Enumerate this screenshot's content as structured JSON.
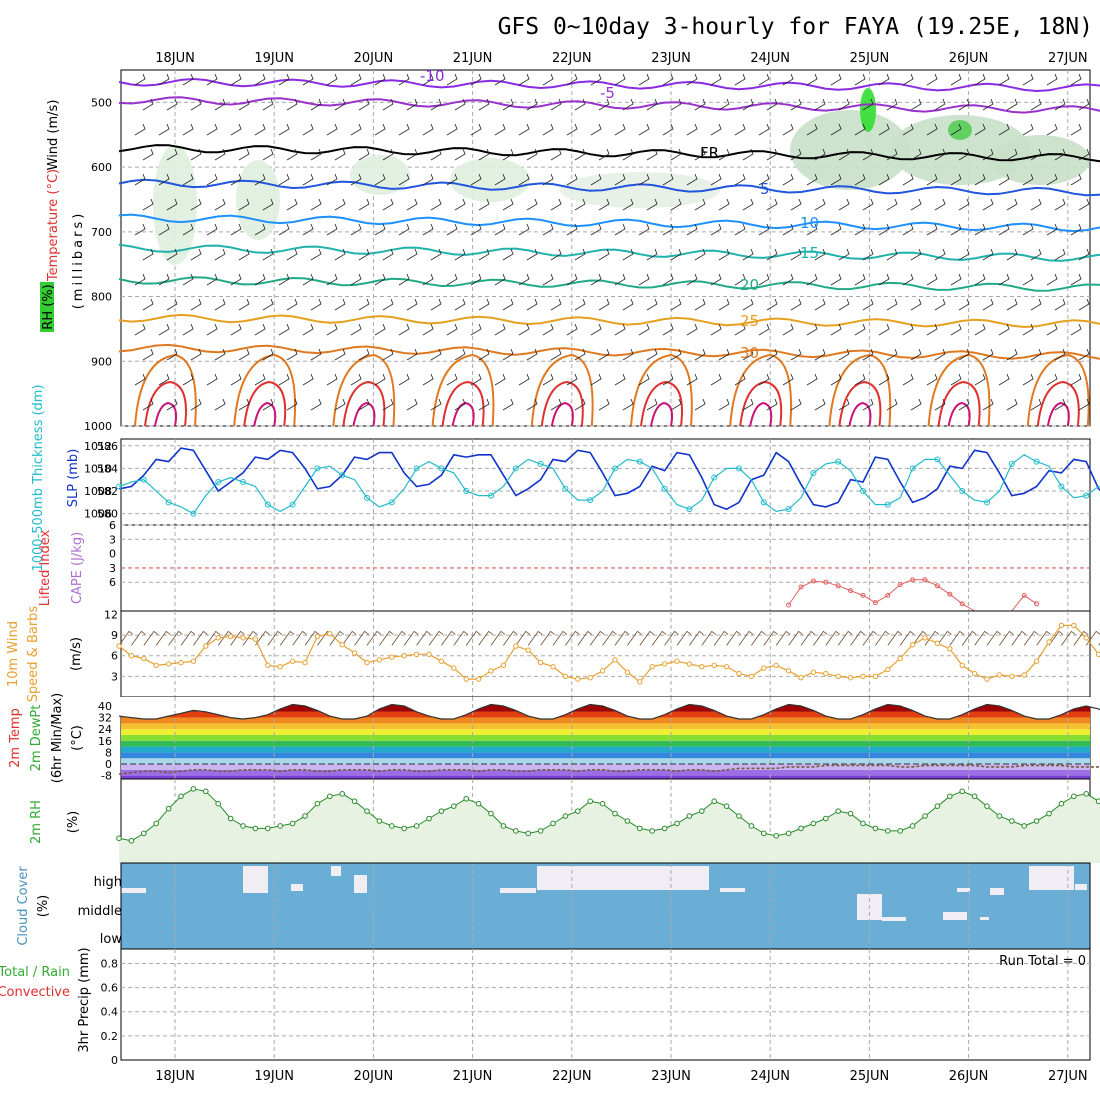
{
  "title": "GFS 0~10day 3-hourly for FAYA (19.25E, 18N)",
  "days": [
    "18JUN",
    "19JUN",
    "20JUN",
    "21JUN",
    "22JUN",
    "23JUN",
    "24JUN",
    "25JUN",
    "26JUN",
    "27JUN"
  ],
  "run_total": "Run Total = 0",
  "colors": {
    "temp_red": "#e03030",
    "dew_green": "#33aa33",
    "cape_purple": "#b070d0",
    "cloud_blue": "#6aaed6",
    "rh_green": "#33cc33",
    "slp_blue": "#1133cc",
    "thick_cyan": "#22bbcc",
    "wind_orange": "#e8a030"
  },
  "chart_data": [
    {
      "type": "line",
      "name": "upper-air",
      "ylabels": [
        "Wind (m/s)",
        "Temperature (°C)",
        "RH (%)",
        "(millibars)"
      ],
      "yticks": [
        500,
        600,
        700,
        800,
        900,
        1000
      ],
      "contours": [
        {
          "label": "-10",
          "color": "#8a2be2",
          "values": [
            -10
          ]
        },
        {
          "label": "-5",
          "color": "#9932cc",
          "values": [
            -5
          ]
        },
        {
          "label": "FR",
          "color": "#000000",
          "values": [
            0
          ]
        },
        {
          "label": "5",
          "color": "#2255dd",
          "values": [
            5
          ]
        },
        {
          "label": "10",
          "color": "#1e90ff",
          "values": [
            10
          ]
        },
        {
          "label": "15",
          "color": "#20b2aa",
          "values": [
            15
          ]
        },
        {
          "label": "20",
          "color": "#22aa88",
          "values": [
            20
          ]
        },
        {
          "label": "25",
          "color": "#e6a020",
          "values": [
            25
          ]
        },
        {
          "label": "30",
          "color": "#e07820",
          "values": [
            30
          ]
        }
      ]
    },
    {
      "type": "line",
      "name": "slp-thickness",
      "ylabels": [
        "1000-500mb Thickness (dm)",
        "SLP (mb)"
      ],
      "left_ticks": [
        580,
        582,
        584,
        586
      ],
      "right_ticks": [
        1006,
        1008,
        1010,
        1012
      ],
      "series": [
        {
          "name": "SLP (mb)",
          "values": [
            1008.2,
            1008.4,
            1009.4,
            1010.8,
            1010.6,
            1011.8,
            1011.6,
            1009.8,
            1008.0,
            1008.8,
            1009.6,
            1011.0,
            1010.8,
            1011.6,
            1011.4,
            1010.0,
            1008.2,
            1008.4,
            1009.4,
            1011.0,
            1010.8,
            1011.4,
            1011.4,
            1009.6,
            1008.4,
            1008.6,
            1009.4,
            1011.2,
            1011.0,
            1011.2,
            1011.2,
            1009.4,
            1007.6,
            1008.2,
            1009.0,
            1010.8,
            1010.6,
            1011.6,
            1011.4,
            1009.6,
            1007.6,
            1007.8,
            1008.4,
            1010.2,
            1009.8,
            1011.4,
            1011.2,
            1009.2,
            1006.8,
            1006.4,
            1007.0,
            1009.0,
            1009.4,
            1011.4,
            1010.6,
            1008.6,
            1006.8,
            1006.6,
            1007.0,
            1009.0,
            1008.8,
            1011.0,
            1010.8,
            1008.8,
            1007.0,
            1007.4,
            1008.2,
            1010.2,
            1010.0,
            1011.6,
            1011.4,
            1009.6,
            1007.6,
            1007.8,
            1008.4,
            1009.8,
            1009.6,
            1010.8,
            1010.6,
            1008.2,
            1007.2
          ]
        },
        {
          "name": "1000-500mb Thickness (dm)",
          "values": [
            582.4,
            582.8,
            583.0,
            582.0,
            581.0,
            580.6,
            580.0,
            581.6,
            582.8,
            583.2,
            582.8,
            582.4,
            580.8,
            580.2,
            580.8,
            582.4,
            584.0,
            584.2,
            583.4,
            583.0,
            581.4,
            580.6,
            581.0,
            582.2,
            584.0,
            584.6,
            584.0,
            583.6,
            582.0,
            581.6,
            581.6,
            582.4,
            584.0,
            584.8,
            584.4,
            584.0,
            582.2,
            581.2,
            581.2,
            582.0,
            584.0,
            584.8,
            584.6,
            584.0,
            582.2,
            580.8,
            580.4,
            581.2,
            583.2,
            584.0,
            584.0,
            583.0,
            581.0,
            580.2,
            580.4,
            581.4,
            583.6,
            584.4,
            584.6,
            583.8,
            582.0,
            580.8,
            580.8,
            581.4,
            584.0,
            584.8,
            584.8,
            583.4,
            582.0,
            581.2,
            581.0,
            582.0,
            584.4,
            585.2,
            584.6,
            584.2,
            582.4,
            581.4,
            581.6,
            582.4,
            582.0
          ]
        }
      ]
    },
    {
      "type": "line",
      "name": "stability",
      "ylabels": [
        "Lifted Index",
        "CAPE (J/kg)"
      ],
      "yticks": [
        "6",
        "3",
        "0",
        "3",
        "6"
      ],
      "series": [
        {
          "name": "CAPE (J/kg)",
          "start_index": 54,
          "values": [
            1,
            4,
            5,
            4.8,
            4.2,
            3.4,
            2.6,
            1.4,
            2.6,
            4.4,
            5.2,
            5.2,
            4.2,
            2.8,
            1.2,
            0,
            0,
            0,
            0,
            2.6,
            1.2
          ]
        }
      ]
    },
    {
      "type": "line",
      "name": "wind10m",
      "ylabels": [
        "10m Wind",
        "Speed & Barbs",
        "(m/s)"
      ],
      "yticks": [
        3,
        6,
        9,
        12
      ],
      "series": [
        {
          "name": "10m Wind Speed",
          "values": [
            7.4,
            6.0,
            5.6,
            4.6,
            4.8,
            5.0,
            5.2,
            7.4,
            8.6,
            8.8,
            8.6,
            8.4,
            4.6,
            4.4,
            5.2,
            5.0,
            8.8,
            9.2,
            7.6,
            6.4,
            5.0,
            5.4,
            5.8,
            6.0,
            6.2,
            6.2,
            5.2,
            4.2,
            2.6,
            2.6,
            3.8,
            4.6,
            7.4,
            6.8,
            5.0,
            4.4,
            3.0,
            2.6,
            2.8,
            3.8,
            5.4,
            3.6,
            2.2,
            4.4,
            4.8,
            5.2,
            4.8,
            4.4,
            4.6,
            4.4,
            3.4,
            3.0,
            4.2,
            4.6,
            3.8,
            2.8,
            3.6,
            3.4,
            3.0,
            2.8,
            3.0,
            3.0,
            4.0,
            5.6,
            7.6,
            8.6,
            7.8,
            7.0,
            4.6,
            3.4,
            2.6,
            3.2,
            3.0,
            3.2,
            5.2,
            8.0,
            10.4,
            10.4,
            8.6,
            6.2,
            8.2,
            9.2,
            10.8
          ]
        }
      ]
    },
    {
      "type": "area",
      "name": "temperature-2m",
      "ylabels": [
        "2m Temp",
        "2m DewPt",
        "(6hr Min/Max)",
        "(°C)"
      ],
      "yticks": [
        -8,
        0,
        8,
        16,
        24,
        32,
        40
      ],
      "series": [
        {
          "name": "2m Temp",
          "values": [
            33,
            32,
            31,
            31,
            33,
            35,
            37,
            36,
            34,
            32,
            31,
            32,
            34,
            38,
            41,
            40,
            37,
            33,
            31,
            31,
            33,
            38,
            41,
            40,
            36,
            33,
            31,
            31,
            34,
            38,
            41,
            40,
            37,
            33,
            31,
            31,
            34,
            38,
            41,
            40,
            37,
            33,
            31,
            31,
            34,
            38,
            41,
            40,
            37,
            33,
            31,
            31,
            34,
            38,
            41,
            40,
            37,
            33,
            31,
            31,
            34,
            38,
            41,
            40,
            37,
            33,
            31,
            31,
            34,
            38,
            41,
            40,
            37,
            33,
            31,
            31,
            34,
            38,
            40,
            38,
            34
          ]
        },
        {
          "name": "2m DewPt",
          "values": [
            -7,
            -6,
            -5,
            -5,
            -6,
            -5,
            -4,
            -4,
            -5,
            -5,
            -4,
            -4,
            -4,
            -5,
            -4,
            -4,
            -5,
            -5,
            -4,
            -4,
            -4,
            -5,
            -4,
            -4,
            -5,
            -5,
            -4,
            -4,
            -4,
            -5,
            -4,
            -4,
            -5,
            -5,
            -4,
            -4,
            -4,
            -5,
            -4,
            -4,
            -5,
            -5,
            -4,
            -4,
            -4,
            -5,
            -4,
            -4,
            -5,
            -4,
            -3,
            -3,
            -3,
            -3,
            -2,
            -2,
            -2,
            -1,
            -1,
            -1,
            -1,
            -1,
            -1,
            -2,
            -2,
            -1,
            -1,
            -1,
            -1,
            -1,
            -2,
            -2,
            -2,
            -1,
            -1,
            -1,
            -1,
            -2,
            -2,
            -2,
            -2
          ]
        }
      ]
    },
    {
      "type": "line",
      "name": "rh-2m",
      "ylabels": [
        "2m RH",
        "(%)"
      ],
      "series": [
        {
          "name": "2m RH",
          "values": [
            10,
            9,
            12,
            16,
            22,
            27,
            30,
            29,
            24,
            18,
            15,
            14,
            14,
            15,
            16,
            19,
            24,
            27,
            28,
            25,
            21,
            17,
            15,
            14,
            15,
            18,
            21,
            23,
            26,
            24,
            20,
            15,
            13,
            12,
            13,
            16,
            19,
            21,
            25,
            24,
            20,
            17,
            14,
            13,
            14,
            16,
            19,
            21,
            25,
            23,
            19,
            15,
            12,
            11,
            12,
            14,
            16,
            18,
            21,
            20,
            16,
            14,
            13,
            13,
            15,
            19,
            23,
            27,
            29,
            27,
            23,
            19,
            17,
            15,
            17,
            20,
            24,
            27,
            28,
            25,
            21,
            19,
            21,
            22,
            24
          ]
        }
      ]
    },
    {
      "type": "heatmap",
      "name": "cloud-cover",
      "ylabels": [
        "Cloud Cover",
        "(%)"
      ],
      "rows": [
        "high",
        "middle",
        "low"
      ]
    },
    {
      "type": "bar",
      "name": "precip",
      "ylabels": [
        "Total / Rain",
        "Convective",
        "3hr Precip (mm)"
      ],
      "yticks": [
        0,
        0.2,
        0.4,
        0.6,
        0.8
      ],
      "values": []
    }
  ]
}
